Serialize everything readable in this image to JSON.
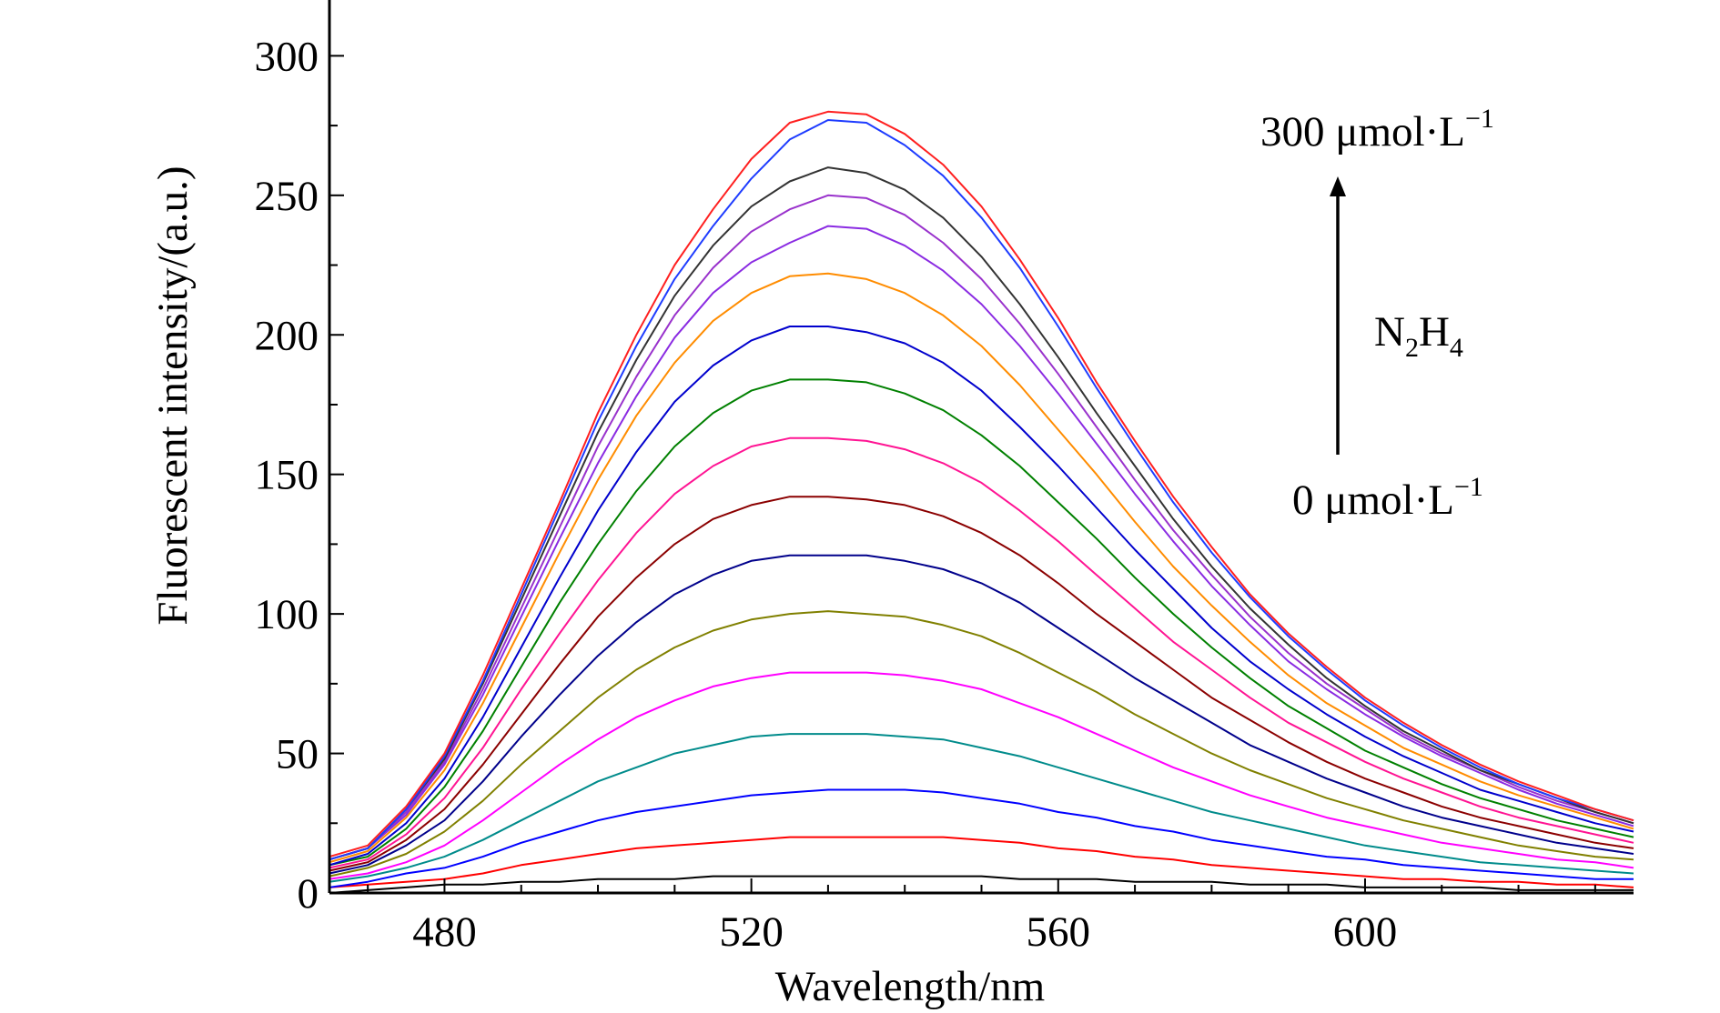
{
  "chart_data": {
    "type": "line",
    "xlabel": "Wavelength/nm",
    "ylabel": "Fluorescent intensity/(a.u.)",
    "xlim": [
      465,
      635
    ],
    "ylim": [
      0,
      320
    ],
    "xticks": [
      480,
      520,
      560,
      600
    ],
    "yticks": [
      0,
      50,
      100,
      150,
      200,
      250,
      300
    ],
    "grid": false,
    "x": [
      465,
      470,
      475,
      480,
      485,
      490,
      495,
      500,
      505,
      510,
      515,
      520,
      525,
      530,
      535,
      540,
      545,
      550,
      555,
      560,
      565,
      570,
      575,
      580,
      585,
      590,
      595,
      600,
      605,
      610,
      615,
      620,
      625,
      630,
      635
    ],
    "series": [
      {
        "color": "#000000",
        "values": [
          0,
          1,
          2,
          3,
          3,
          4,
          4,
          5,
          5,
          5,
          6,
          6,
          6,
          6,
          6,
          6,
          6,
          6,
          5,
          5,
          5,
          4,
          4,
          4,
          3,
          3,
          3,
          2,
          2,
          2,
          2,
          1,
          1,
          1,
          1
        ]
      },
      {
        "color": "#ff0000",
        "values": [
          2,
          3,
          4,
          5,
          7,
          10,
          12,
          14,
          16,
          17,
          18,
          19,
          20,
          20,
          20,
          20,
          20,
          19,
          18,
          16,
          15,
          13,
          12,
          10,
          9,
          8,
          7,
          6,
          5,
          5,
          4,
          4,
          3,
          3,
          2
        ]
      },
      {
        "color": "#0000ff",
        "values": [
          2,
          4,
          7,
          9,
          13,
          18,
          22,
          26,
          29,
          31,
          33,
          35,
          36,
          37,
          37,
          37,
          36,
          34,
          32,
          29,
          27,
          24,
          22,
          19,
          17,
          15,
          13,
          12,
          10,
          9,
          8,
          7,
          6,
          5,
          5
        ]
      },
      {
        "color": "#008b8b",
        "values": [
          4,
          6,
          9,
          13,
          19,
          26,
          33,
          40,
          45,
          50,
          53,
          56,
          57,
          57,
          57,
          56,
          55,
          52,
          49,
          45,
          41,
          37,
          33,
          29,
          26,
          23,
          20,
          17,
          15,
          13,
          11,
          10,
          9,
          8,
          7
        ]
      },
      {
        "color": "#ff00ff",
        "values": [
          5,
          7,
          11,
          17,
          26,
          36,
          46,
          55,
          63,
          69,
          74,
          77,
          79,
          79,
          79,
          78,
          76,
          73,
          68,
          63,
          57,
          51,
          45,
          40,
          35,
          31,
          27,
          24,
          21,
          18,
          16,
          14,
          12,
          11,
          9
        ]
      },
      {
        "color": "#808000",
        "values": [
          6,
          9,
          14,
          22,
          33,
          46,
          58,
          70,
          80,
          88,
          94,
          98,
          100,
          101,
          100,
          99,
          96,
          92,
          86,
          79,
          72,
          64,
          57,
          50,
          44,
          39,
          34,
          30,
          26,
          23,
          20,
          17,
          15,
          13,
          12
        ]
      },
      {
        "color": "#00008b",
        "values": [
          7,
          10,
          17,
          26,
          40,
          56,
          71,
          85,
          97,
          107,
          114,
          119,
          121,
          121,
          121,
          119,
          116,
          111,
          104,
          95,
          86,
          77,
          69,
          61,
          53,
          47,
          41,
          36,
          31,
          27,
          24,
          21,
          18,
          16,
          14
        ]
      },
      {
        "color": "#8b0000",
        "values": [
          8,
          11,
          19,
          30,
          46,
          64,
          82,
          99,
          113,
          125,
          134,
          139,
          142,
          142,
          141,
          139,
          135,
          129,
          121,
          111,
          100,
          90,
          80,
          70,
          62,
          54,
          47,
          41,
          36,
          31,
          27,
          24,
          21,
          18,
          16
        ]
      },
      {
        "color": "#ff1493",
        "values": [
          9,
          12,
          21,
          34,
          52,
          73,
          93,
          112,
          129,
          143,
          153,
          160,
          163,
          163,
          162,
          159,
          154,
          147,
          137,
          126,
          114,
          102,
          90,
          80,
          70,
          61,
          54,
          47,
          41,
          36,
          31,
          27,
          24,
          21,
          18
        ]
      },
      {
        "color": "#008000",
        "values": [
          10,
          13,
          23,
          38,
          58,
          81,
          104,
          125,
          144,
          160,
          172,
          180,
          184,
          184,
          183,
          179,
          173,
          164,
          153,
          140,
          127,
          113,
          100,
          88,
          77,
          67,
          59,
          51,
          45,
          39,
          34,
          30,
          26,
          23,
          20
        ]
      },
      {
        "color": "#0000cd",
        "values": [
          10,
          14,
          25,
          41,
          63,
          88,
          113,
          137,
          158,
          176,
          189,
          198,
          203,
          203,
          201,
          197,
          190,
          180,
          167,
          153,
          138,
          123,
          109,
          95,
          83,
          73,
          64,
          56,
          49,
          43,
          37,
          33,
          29,
          25,
          22
        ]
      },
      {
        "color": "#ff8c00",
        "values": [
          11,
          15,
          27,
          44,
          68,
          95,
          122,
          148,
          171,
          190,
          205,
          215,
          221,
          222,
          220,
          215,
          207,
          196,
          182,
          166,
          150,
          133,
          117,
          103,
          90,
          78,
          68,
          60,
          52,
          46,
          40,
          35,
          31,
          27,
          23
        ]
      },
      {
        "color": "#8a2be2",
        "values": [
          12,
          16,
          28,
          46,
          71,
          99,
          127,
          154,
          178,
          199,
          215,
          226,
          233,
          239,
          238,
          232,
          223,
          211,
          196,
          179,
          161,
          143,
          126,
          110,
          96,
          83,
          73,
          64,
          56,
          49,
          43,
          37,
          32,
          28,
          24
        ]
      },
      {
        "color": "#9932cc",
        "values": [
          12,
          16,
          29,
          47,
          73,
          102,
          131,
          160,
          185,
          207,
          224,
          237,
          245,
          250,
          249,
          243,
          233,
          220,
          204,
          186,
          167,
          148,
          130,
          114,
          99,
          86,
          75,
          66,
          57,
          50,
          44,
          38,
          33,
          29,
          25
        ]
      },
      {
        "color": "#333333",
        "values": [
          12,
          16,
          30,
          48,
          75,
          105,
          135,
          165,
          191,
          214,
          232,
          246,
          255,
          260,
          258,
          252,
          242,
          228,
          211,
          192,
          172,
          153,
          134,
          117,
          102,
          89,
          77,
          67,
          58,
          51,
          44,
          39,
          34,
          29,
          25
        ]
      },
      {
        "color": "#1e3cff",
        "values": [
          12,
          16,
          30,
          49,
          76,
          107,
          138,
          169,
          196,
          220,
          239,
          256,
          270,
          277,
          276,
          268,
          257,
          242,
          224,
          203,
          181,
          160,
          140,
          122,
          106,
          92,
          80,
          69,
          60,
          52,
          45,
          39,
          34,
          30,
          26
        ]
      },
      {
        "color": "#ff2020",
        "values": [
          13,
          17,
          31,
          50,
          78,
          109,
          140,
          172,
          200,
          225,
          245,
          263,
          276,
          280,
          279,
          272,
          261,
          246,
          227,
          206,
          183,
          162,
          142,
          124,
          107,
          93,
          81,
          70,
          61,
          53,
          46,
          40,
          35,
          30,
          26
        ]
      }
    ]
  },
  "annotations": {
    "top_label": "300 μmol·L",
    "top_exp": "−1",
    "bottom_label": "0 μmol·L",
    "bottom_exp": "−1",
    "analyte_base_1": "N",
    "analyte_sub_1": "2",
    "analyte_base_2": "H",
    "analyte_sub_2": "4"
  }
}
